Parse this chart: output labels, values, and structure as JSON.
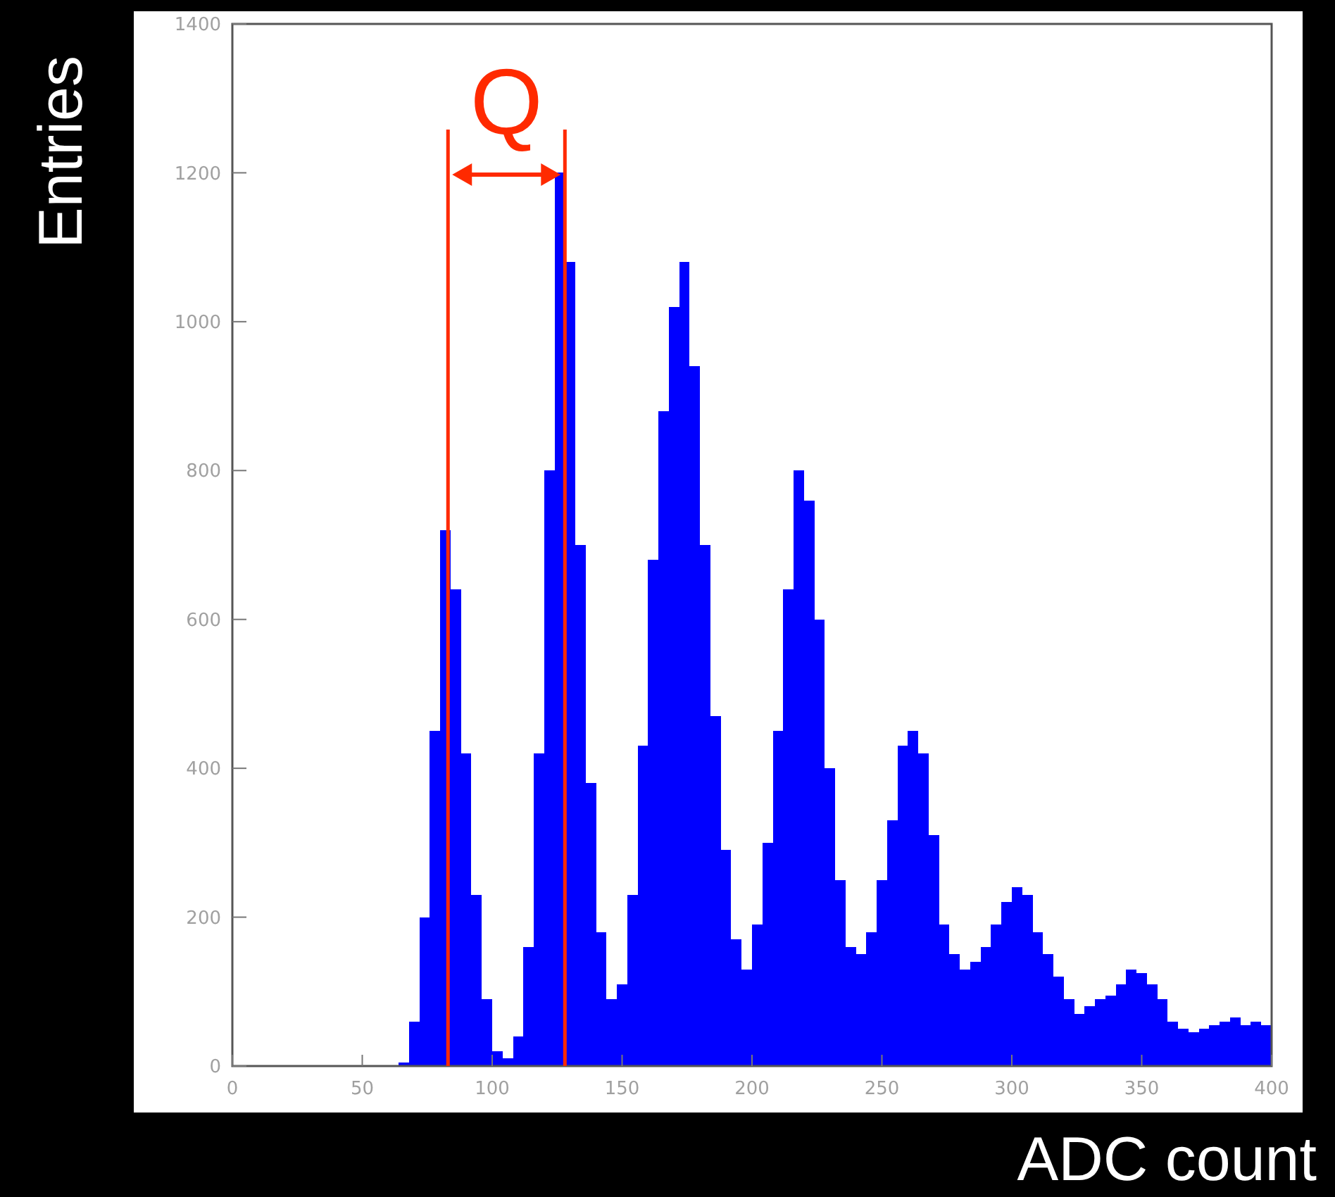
{
  "chart_data": {
    "type": "histogram",
    "xlabel": "ADC count",
    "ylabel": "Entries",
    "color": "#0000ff",
    "bins": [
      0,
      4,
      8,
      12,
      16,
      20,
      24,
      28,
      32,
      36,
      40,
      44,
      48,
      52,
      56,
      60,
      64,
      68,
      72,
      76,
      80,
      84,
      88,
      92,
      96,
      100,
      104,
      108,
      112,
      116,
      120,
      124,
      128,
      132,
      136,
      140,
      144,
      148,
      152,
      156,
      160,
      164,
      168,
      172,
      176,
      180,
      184,
      188,
      192,
      196,
      200,
      204,
      208,
      212,
      216,
      220,
      224,
      228,
      232,
      236,
      240,
      244,
      248,
      252,
      256,
      260,
      264,
      268,
      272,
      276,
      280,
      284,
      288,
      292,
      296,
      300,
      304,
      308,
      312,
      316,
      320,
      324,
      328,
      332,
      336,
      340,
      344,
      348,
      352,
      356,
      360,
      364,
      368,
      372,
      376,
      380,
      384,
      388,
      392,
      396,
      400
    ],
    "values": [
      0,
      0,
      0,
      0,
      0,
      0,
      0,
      0,
      0,
      0,
      0,
      0,
      0,
      0,
      0,
      0,
      5,
      60,
      200,
      450,
      720,
      640,
      420,
      230,
      90,
      20,
      10,
      40,
      160,
      420,
      800,
      1200,
      1080,
      700,
      380,
      180,
      90,
      110,
      230,
      430,
      680,
      880,
      1020,
      1080,
      940,
      700,
      470,
      290,
      170,
      130,
      190,
      300,
      450,
      640,
      800,
      760,
      600,
      400,
      250,
      160,
      150,
      180,
      250,
      330,
      430,
      450,
      420,
      310,
      190,
      150,
      130,
      140,
      160,
      190,
      220,
      240,
      230,
      180,
      150,
      120,
      90,
      70,
      80,
      90,
      95,
      110,
      130,
      125,
      110,
      90,
      60,
      50,
      45,
      50,
      55,
      60,
      65,
      55,
      60,
      55
    ],
    "xlim": [
      0,
      400
    ],
    "xticks": [
      0,
      50,
      100,
      150,
      200,
      250,
      300,
      350,
      400
    ],
    "ylim": [
      0,
      1400
    ],
    "yticks": [
      0,
      200,
      400,
      600,
      800,
      1000,
      1200,
      1400
    ],
    "grid": false,
    "ref_lines": [
      {
        "axis": "x",
        "value": 83,
        "color": "#ff2a00"
      },
      {
        "axis": "x",
        "value": 128,
        "color": "#ff2a00"
      }
    ],
    "annotations": [
      "Q"
    ]
  }
}
